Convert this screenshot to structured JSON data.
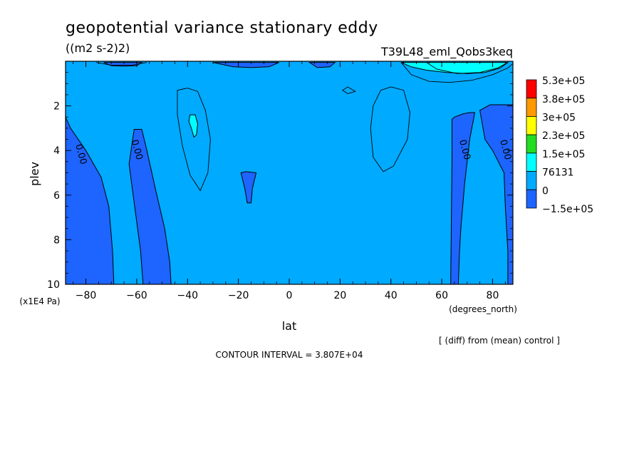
{
  "chart_data": {
    "type": "contour",
    "title": "geopotential variance stationary eddy",
    "units": "((m2 s-2)2)",
    "experiment": "T39L48_eml_Qobs3keq",
    "xlabel": "lat",
    "x_units": "(degrees_north)",
    "ylabel": "plev",
    "y_units": "(x1E4 Pa)",
    "xlim": [
      -88,
      88
    ],
    "ylim": [
      10,
      0
    ],
    "x_ticks": [
      -80,
      -60,
      -40,
      -20,
      0,
      20,
      40,
      60,
      80
    ],
    "y_ticks": [
      2,
      4,
      6,
      8,
      10
    ],
    "diff_note": "[ (diff) from (mean) control ]",
    "contour_interval": "CONTOUR INTERVAL = 3.807E+04",
    "contour_labels": [
      {
        "text": "0.00",
        "lat": -83,
        "plev": 4.2
      },
      {
        "text": "0.00",
        "lat": -61,
        "plev": 4.0
      },
      {
        "text": "0.00",
        "lat": 68,
        "plev": 4.0
      },
      {
        "text": "0.00",
        "lat": 84,
        "plev": 4.0
      }
    ],
    "colorbar": {
      "labels": [
        "5.3e+05",
        "3.8e+05",
        "3e+05",
        "2.3e+05",
        "1.5e+05",
        "76131",
        "0",
        "−1.5e+05"
      ],
      "colors": [
        "#ff0000",
        "#ff9900",
        "#ffff00",
        "#22dd22",
        "#00ffff",
        "#00aaff",
        "#1e64ff"
      ]
    },
    "regions": [
      {
        "name": "background",
        "level": "0 to 76131",
        "color": "#00aaff"
      },
      {
        "name": "negative-band-south-outer",
        "level": "-1.5e+05 to 0",
        "color": "#1e64ff",
        "points": [
          [
            -88,
            2.5
          ],
          [
            -86,
            3.0
          ],
          [
            -80,
            4.0
          ],
          [
            -74,
            5.2
          ],
          [
            -71,
            6.5
          ],
          [
            -69.5,
            8.5
          ],
          [
            -69,
            10
          ],
          [
            -88,
            10
          ]
        ]
      },
      {
        "name": "negative-band-south-inner",
        "level": "-1.5e+05 to 0",
        "color": "#1e64ff",
        "points": [
          [
            -61,
            3.05
          ],
          [
            -58,
            3.05
          ],
          [
            -56,
            4.0
          ],
          [
            -52.5,
            5.8
          ],
          [
            -49,
            7.5
          ],
          [
            -47,
            9.0
          ],
          [
            -46.5,
            10
          ],
          [
            -57.5,
            10
          ],
          [
            -58.5,
            8.5
          ],
          [
            -60,
            7.2
          ],
          [
            -62,
            5.5
          ],
          [
            -63,
            4.6
          ]
        ]
      },
      {
        "name": "negative-band-north-inner",
        "level": "-1.5e+05 to 0",
        "color": "#1e64ff",
        "points": [
          [
            64,
            2.6
          ],
          [
            65,
            2.5
          ],
          [
            68.5,
            2.35
          ],
          [
            71,
            2.3
          ],
          [
            73,
            2.3
          ],
          [
            71,
            3.5
          ],
          [
            69,
            5.5
          ],
          [
            67.5,
            7.5
          ],
          [
            67,
            8.5
          ],
          [
            66.5,
            10
          ],
          [
            63.5,
            10
          ],
          [
            63.7,
            8.0
          ],
          [
            64,
            4.5
          ]
        ]
      },
      {
        "name": "negative-band-north-outer",
        "level": "-1.5e+05 to 0",
        "color": "#1e64ff",
        "points": [
          [
            75,
            2.2
          ],
          [
            79,
            1.95
          ],
          [
            83,
            1.95
          ],
          [
            88,
            1.95
          ],
          [
            88,
            10
          ],
          [
            86,
            10
          ],
          [
            86,
            8.5
          ],
          [
            85,
            6.5
          ],
          [
            84.5,
            5.0
          ],
          [
            80,
            4.0
          ],
          [
            77,
            3.5
          ]
        ]
      },
      {
        "name": "negative-blob-south-tropics",
        "level": "-1.5e+05 to 0",
        "color": "#1e64ff",
        "points": [
          [
            -19,
            5.0
          ],
          [
            -17,
            4.95
          ],
          [
            -13,
            5.0
          ],
          [
            -14.5,
            5.7
          ],
          [
            -15,
            6.35
          ],
          [
            -16.5,
            6.35
          ],
          [
            -17.5,
            5.7
          ]
        ]
      },
      {
        "name": "positive-blob-south-midlat",
        "level": "76131 to 1.5e+05",
        "color": "#00ffff",
        "points": [
          [
            -39,
            2.4
          ],
          [
            -37,
            2.4
          ],
          [
            -36,
            2.8
          ],
          [
            -36.5,
            3.3
          ],
          [
            -37.5,
            3.4
          ],
          [
            -38.5,
            3.0
          ],
          [
            -39.5,
            2.7
          ]
        ]
      },
      {
        "name": "negative-top-south",
        "level": "-1.5e+05 to 0",
        "color": "#1e64ff",
        "points": [
          [
            -73,
            0.05
          ],
          [
            -58,
            0.05
          ],
          [
            -60,
            0.2
          ],
          [
            -65,
            0.22
          ],
          [
            -70,
            0.2
          ]
        ]
      },
      {
        "name": "negative-top-equator-south",
        "level": "-1.5e+05 to 0",
        "color": "#1e64ff",
        "points": [
          [
            -30,
            0.05
          ],
          [
            -4,
            0.05
          ],
          [
            -8,
            0.25
          ],
          [
            -15,
            0.28
          ],
          [
            -22,
            0.25
          ]
        ]
      },
      {
        "name": "negative-top-equator-north",
        "level": "-1.5e+05 to 0",
        "color": "#1e64ff",
        "points": [
          [
            8,
            0.05
          ],
          [
            18,
            0.05
          ],
          [
            16,
            0.25
          ],
          [
            11,
            0.28
          ]
        ]
      },
      {
        "name": "positive-top-north",
        "level": "76131 to 5.3e+05",
        "color": "#00ffff",
        "points": [
          [
            44,
            0.05
          ],
          [
            86,
            0.05
          ],
          [
            83,
            0.3
          ],
          [
            77,
            0.5
          ],
          [
            70,
            0.55
          ],
          [
            62,
            0.5
          ],
          [
            54,
            0.4
          ],
          [
            48,
            0.25
          ]
        ]
      }
    ],
    "contour_lines": [
      {
        "level": "76131",
        "points": [
          [
            -44,
            1.3
          ],
          [
            -40,
            1.2
          ],
          [
            -36,
            1.35
          ],
          [
            -33,
            2.2
          ],
          [
            -31,
            3.5
          ],
          [
            -32,
            5.0
          ],
          [
            -35,
            5.8
          ],
          [
            -39,
            5.1
          ],
          [
            -42,
            3.8
          ],
          [
            -44,
            2.4
          ]
        ]
      },
      {
        "level": "76131",
        "points": [
          [
            36,
            1.3
          ],
          [
            40,
            1.15
          ],
          [
            45,
            1.3
          ],
          [
            47.5,
            2.3
          ],
          [
            46.5,
            3.5
          ],
          [
            41,
            4.7
          ],
          [
            37,
            4.95
          ],
          [
            33,
            4.3
          ],
          [
            32,
            3.0
          ],
          [
            33,
            2.0
          ]
        ]
      },
      {
        "level": "76131",
        "points": [
          [
            21,
            1.3
          ],
          [
            23,
            1.15
          ],
          [
            26,
            1.35
          ],
          [
            23,
            1.45
          ]
        ]
      },
      {
        "level": "76131",
        "points": [
          [
            44,
            0.05
          ],
          [
            48,
            0.6
          ],
          [
            55,
            0.9
          ],
          [
            63,
            0.95
          ],
          [
            72,
            0.85
          ],
          [
            80,
            0.6
          ],
          [
            86,
            0.3
          ],
          [
            88,
            0.1
          ]
        ]
      },
      {
        "level": "1.5e+05",
        "points": [
          [
            54,
            0.05
          ],
          [
            58,
            0.35
          ],
          [
            66,
            0.55
          ],
          [
            75,
            0.5
          ],
          [
            82,
            0.3
          ],
          [
            86,
            0.05
          ]
        ]
      },
      {
        "level": "-1.5e+05",
        "points": [
          [
            -76,
            0.05
          ],
          [
            -70,
            0.18
          ],
          [
            -62,
            0.18
          ],
          [
            -56,
            0.05
          ]
        ]
      }
    ]
  }
}
